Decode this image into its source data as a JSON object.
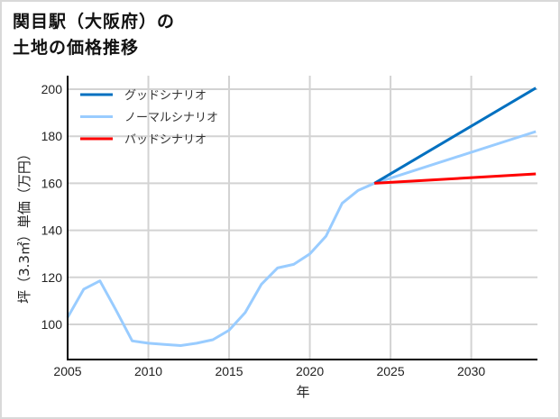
{
  "title_line1": "関目駅（大阪府）の",
  "title_line2": "土地の価格推移",
  "chart_data": {
    "type": "line",
    "title": "関目駅（大阪府）の土地の価格推移",
    "xlabel": "年",
    "ylabel": "坪（3.3㎡）単価（万円）",
    "xlim": [
      2005,
      2034
    ],
    "ylim": [
      85,
      206
    ],
    "xticks": [
      2005,
      2010,
      2015,
      2020,
      2025,
      2030
    ],
    "yticks": [
      100,
      120,
      140,
      160,
      180,
      200
    ],
    "grid": true,
    "legend_position": "upper left",
    "legend": [
      "グッドシナリオ",
      "ノーマルシナリオ",
      "バッドシナリオ"
    ],
    "series": [
      {
        "name": "ノーマルシナリオ",
        "color": "#99ccff",
        "x": [
          2005,
          2006,
          2007,
          2008,
          2009,
          2010,
          2011,
          2012,
          2013,
          2014,
          2015,
          2016,
          2017,
          2018,
          2019,
          2020,
          2021,
          2022,
          2023,
          2024,
          2034
        ],
        "values": [
          103,
          115,
          118.5,
          106,
          93,
          92,
          91.5,
          91,
          92,
          93.5,
          97.5,
          105,
          117,
          124,
          125.5,
          130,
          137.5,
          151.5,
          157,
          160,
          182
        ]
      },
      {
        "name": "グッドシナリオ",
        "color": "#0070c0",
        "x": [
          2024,
          2034
        ],
        "values": [
          160,
          200.5
        ]
      },
      {
        "name": "バッドシナリオ",
        "color": "#ff0000",
        "x": [
          2024,
          2034
        ],
        "values": [
          160,
          164
        ]
      }
    ]
  }
}
